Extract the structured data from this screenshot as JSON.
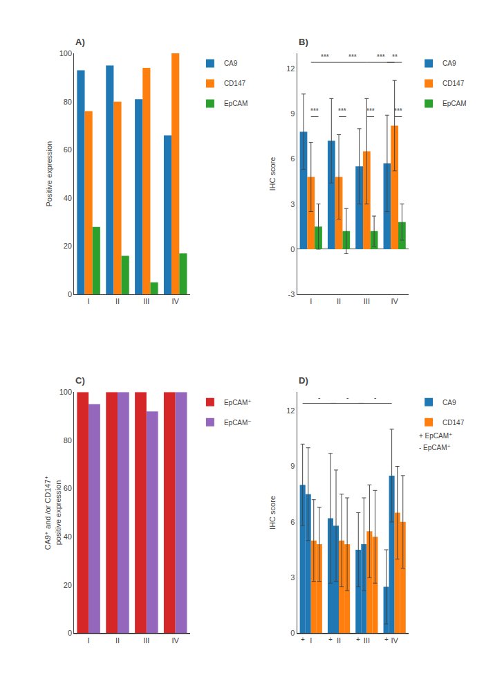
{
  "chart_data": [
    {
      "type": "bar",
      "title": "A)",
      "categories": [
        "I",
        "II",
        "III",
        "IV"
      ],
      "series": [
        {
          "name": "CA9",
          "color": "#1f77b4",
          "values": [
            93,
            95,
            81,
            66
          ]
        },
        {
          "name": "CD147",
          "color": "#ff7f0e",
          "values": [
            76,
            80,
            94,
            100
          ]
        },
        {
          "name": "EpCAM",
          "color": "#2ca02c",
          "values": [
            28,
            16,
            5,
            17
          ]
        }
      ],
      "ylabel": "Positive expression",
      "ylim": [
        0,
        100
      ],
      "yticks": [
        0,
        20,
        40,
        60,
        80,
        100
      ],
      "grid": false,
      "legend": "right"
    },
    {
      "type": "bar",
      "title": "B)",
      "categories": [
        "I",
        "II",
        "III",
        "IV"
      ],
      "series": [
        {
          "name": "CA9",
          "color": "#1f77b4",
          "values": [
            7.8,
            7.2,
            5.5,
            5.7
          ],
          "errors": [
            2.5,
            2.8,
            2.5,
            3.2
          ]
        },
        {
          "name": "CD147",
          "color": "#ff7f0e",
          "values": [
            4.8,
            4.8,
            6.5,
            8.2
          ],
          "errors": [
            2.3,
            2.8,
            3.5,
            3.0
          ]
        },
        {
          "name": "EpCAM",
          "color": "#2ca02c",
          "values": [
            1.5,
            1.2,
            1.2,
            1.8
          ],
          "errors": [
            1.5,
            1.5,
            1.0,
            1.2
          ]
        }
      ],
      "ylabel": "IHC score",
      "ylim": [
        -3,
        13
      ],
      "yticks": [
        -3,
        0,
        3,
        6,
        9,
        12
      ],
      "grid": false,
      "legend": "right",
      "annotations": [
        {
          "text": "***",
          "y": 12.4,
          "from": {
            "category": "I",
            "series": 1
          },
          "to": {
            "category": "II",
            "series": 1
          }
        },
        {
          "text": "***",
          "y": 12.4,
          "from": {
            "category": "II",
            "series": 1
          },
          "to": {
            "category": "III",
            "series": 1
          }
        },
        {
          "text": "***",
          "y": 12.4,
          "from": {
            "category": "III",
            "series": 1
          },
          "to": {
            "category": "IV",
            "series": 1
          }
        },
        {
          "text": "**",
          "y": 12.4,
          "from": {
            "category": "IV",
            "series": 0
          },
          "to": {
            "category": "IV",
            "series": 2
          }
        },
        {
          "text": "***",
          "y": 8.8,
          "from": {
            "category": "I",
            "series": 1
          },
          "to": {
            "category": "I",
            "series": 2
          }
        },
        {
          "text": "***",
          "y": 8.8,
          "from": {
            "category": "II",
            "series": 1
          },
          "to": {
            "category": "II",
            "series": 2
          }
        },
        {
          "text": "***",
          "y": 8.8,
          "from": {
            "category": "III",
            "series": 1
          },
          "to": {
            "category": "III",
            "series": 2
          }
        },
        {
          "text": "***",
          "y": 8.8,
          "from": {
            "category": "IV",
            "series": 1
          },
          "to": {
            "category": "IV",
            "series": 2
          }
        }
      ]
    },
    {
      "type": "bar",
      "title": "C)",
      "categories": [
        "I",
        "II",
        "III",
        "IV"
      ],
      "series": [
        {
          "name": "EpCAM⁺",
          "color": "#d62728",
          "values": [
            100,
            100,
            100,
            100
          ]
        },
        {
          "name": "EpCAM⁻",
          "color": "#9467bd",
          "values": [
            95,
            100,
            92,
            100
          ]
        }
      ],
      "ylabel": "CA9⁺ and /or CD147⁺\npositive expression",
      "ylim": [
        0,
        100
      ],
      "yticks": [
        0,
        20,
        40,
        60,
        80,
        100
      ],
      "grid": false,
      "legend": "right"
    },
    {
      "type": "bar",
      "title": "D)",
      "categories": [
        "I",
        "II",
        "III",
        "IV"
      ],
      "series": [
        {
          "name": "CA9",
          "color": "#1f77b4",
          "values": [
            8.0,
            6.2,
            4.5,
            2.5
          ],
          "errors": [
            2.2,
            3.5,
            2.0,
            2.0
          ]
        },
        {
          "name": "CA9",
          "color": "#1f77b4",
          "values": [
            7.5,
            5.8,
            4.8,
            8.5
          ],
          "errors": [
            2.5,
            3.0,
            2.5,
            2.5
          ]
        },
        {
          "name": "CD147",
          "color": "#ff7f0e",
          "values": [
            5.0,
            5.0,
            5.5,
            6.5
          ],
          "errors": [
            2.2,
            2.5,
            2.5,
            2.5
          ]
        },
        {
          "name": "CD147",
          "color": "#ff7f0e",
          "values": [
            4.8,
            4.8,
            5.2,
            6.0
          ],
          "errors": [
            2.0,
            2.5,
            2.5,
            2.5
          ]
        }
      ],
      "ylabel": "IHC score",
      "ylim": [
        0,
        13
      ],
      "yticks": [
        0,
        3,
        6,
        9,
        12
      ],
      "grid": false,
      "legend": "right",
      "annotations": [
        {
          "text": "-",
          "y": 12.4,
          "from": {
            "category": "I",
            "series": 0
          },
          "to": {
            "category": "II",
            "series": 1
          }
        },
        {
          "text": "-",
          "y": 12.4,
          "from": {
            "category": "II",
            "series": 0
          },
          "to": {
            "category": "III",
            "series": 1
          }
        },
        {
          "text": "-",
          "y": 12.4,
          "from": {
            "category": "III",
            "series": 0
          },
          "to": {
            "category": "IV",
            "series": 1
          }
        },
        {
          "text": "+",
          "category": "I",
          "series": 0
        },
        {
          "text": "+",
          "category": "II",
          "series": 0
        },
        {
          "text": "+",
          "category": "III",
          "series": 0
        },
        {
          "text": "+",
          "category": "IV",
          "series": 0
        },
        {
          "text": "+ EpCAM⁺"
        },
        {
          "text": "- EpCAM⁺"
        }
      ]
    }
  ]
}
